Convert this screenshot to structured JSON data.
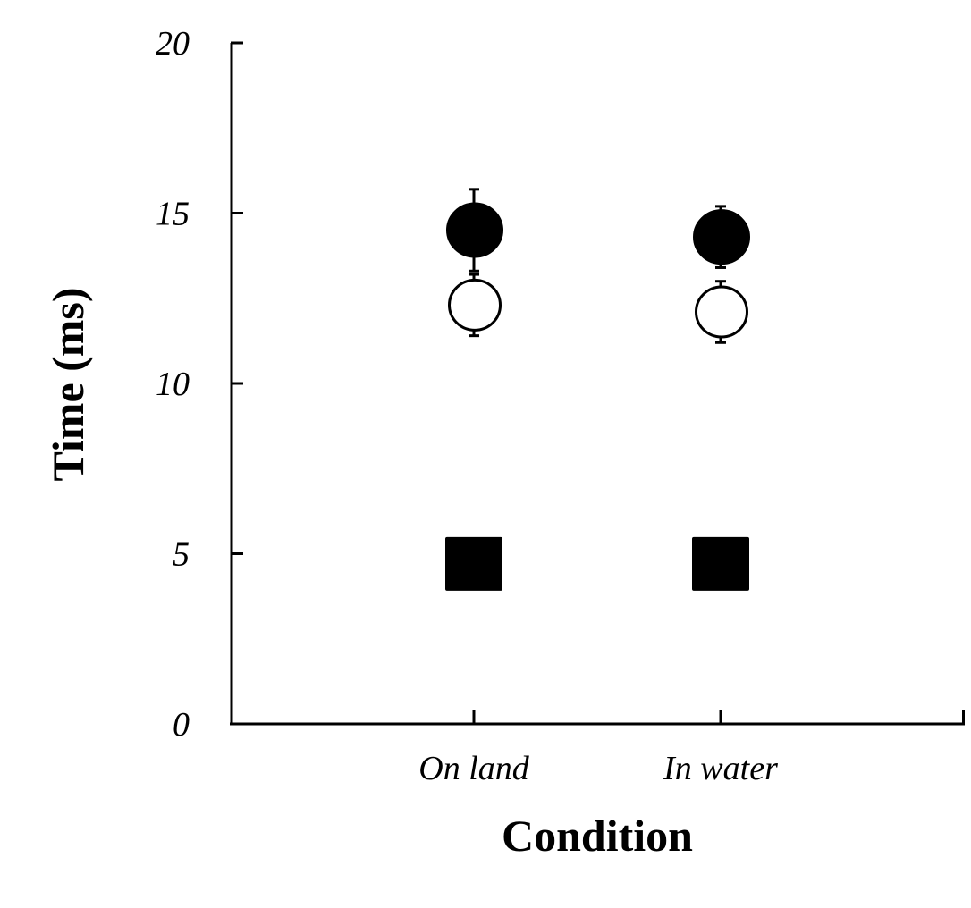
{
  "chart_data": {
    "type": "scatter",
    "title": "",
    "xlabel": "Condition",
    "ylabel": "Time (ms)",
    "categories": [
      "On land",
      "In water"
    ],
    "ylim": [
      0,
      20
    ],
    "yticks": [
      0,
      5,
      10,
      15,
      20
    ],
    "grid": false,
    "legend": "none",
    "series": [
      {
        "marker": "filled-circle",
        "color": "#000000",
        "values": [
          14.5,
          14.3
        ],
        "error": [
          1.2,
          0.9
        ]
      },
      {
        "marker": "open-circle",
        "color": "#000000",
        "values": [
          12.3,
          12.1
        ],
        "error": [
          0.9,
          0.9
        ]
      },
      {
        "marker": "filled-square",
        "color": "#000000",
        "values": [
          4.7,
          4.7
        ],
        "error": [
          0,
          0
        ]
      }
    ]
  }
}
